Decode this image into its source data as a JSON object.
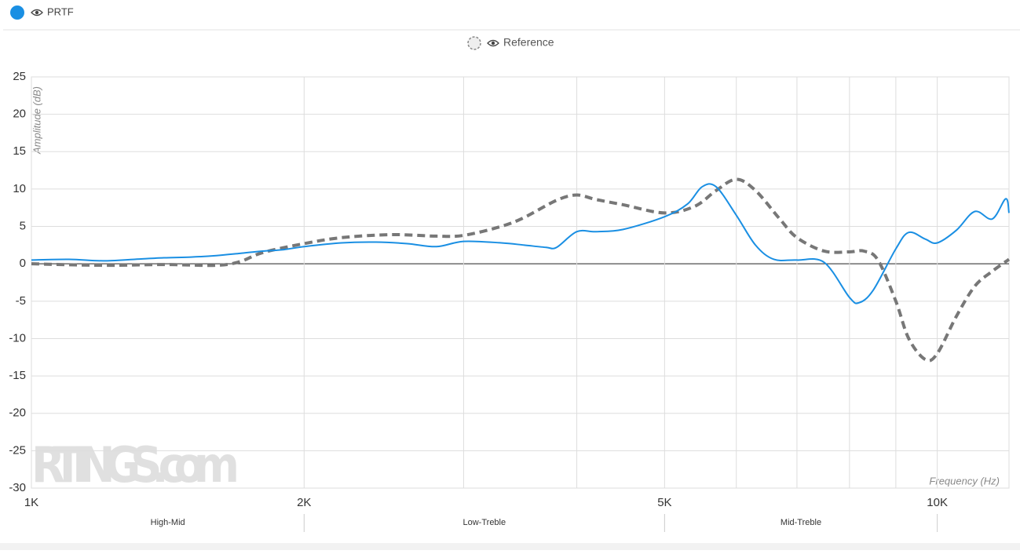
{
  "chart_data": {
    "type": "line",
    "legend": [
      "PRTF",
      "Reference"
    ],
    "y_title": "Amplitude (dB)",
    "x_title": "Frequency (Hz)",
    "watermark": "RTINGS.com",
    "log_x": true,
    "grid": true,
    "xlim": [
      1000,
      12000
    ],
    "ylim": [
      -30,
      25
    ],
    "yticks": [
      -30,
      -25,
      -20,
      -15,
      -10,
      -5,
      0,
      5,
      10,
      15,
      20,
      25
    ],
    "xticks": [
      {
        "value": 1000,
        "label": "1K"
      },
      {
        "value": 2000,
        "label": "2K"
      },
      {
        "value": 5000,
        "label": "5K"
      },
      {
        "value": 10000,
        "label": "10K"
      }
    ],
    "xgrid": [
      3000,
      4000,
      6000,
      7000,
      8000,
      9000
    ],
    "bands": [
      {
        "label": "High-Mid",
        "from": 1000,
        "to": 2000
      },
      {
        "label": "Low-Treble",
        "from": 2000,
        "to": 5000
      },
      {
        "label": "Mid-Treble",
        "from": 5000,
        "to": 10000
      }
    ],
    "series": [
      {
        "name": "PRTF",
        "color": "#1a8fe3",
        "dashed": false,
        "x": [
          1000,
          1100,
          1200,
          1300,
          1400,
          1500,
          1600,
          1700,
          1800,
          1900,
          2000,
          2200,
          2400,
          2600,
          2800,
          3000,
          3300,
          3500,
          3700,
          3800,
          4000,
          4200,
          4500,
          5000,
          5300,
          5500,
          5700,
          6000,
          6300,
          6600,
          7000,
          7500,
          8000,
          8200,
          8500,
          9000,
          9300,
          9700,
          10000,
          10500,
          11000,
          11500,
          11900,
          12000
        ],
        "values": [
          0.5,
          0.6,
          0.4,
          0.6,
          0.8,
          0.9,
          1.1,
          1.4,
          1.7,
          1.9,
          2.3,
          2.8,
          2.9,
          2.7,
          2.3,
          3.0,
          2.8,
          2.5,
          2.2,
          2.2,
          4.3,
          4.3,
          4.6,
          6.3,
          8.0,
          10.3,
          10.3,
          6.5,
          2.5,
          0.6,
          0.5,
          0.2,
          -4.5,
          -5.2,
          -3.5,
          2.0,
          4.2,
          3.3,
          2.8,
          4.5,
          7.0,
          6.0,
          8.7,
          6.8
        ]
      },
      {
        "name": "Reference",
        "color": "#777777",
        "dashed": true,
        "x": [
          1000,
          1200,
          1400,
          1600,
          1700,
          1800,
          2000,
          2200,
          2500,
          2800,
          3000,
          3300,
          3500,
          3800,
          4000,
          4200,
          4500,
          5000,
          5400,
          5700,
          6000,
          6300,
          6700,
          7000,
          7500,
          8000,
          8300,
          8600,
          9000,
          9300,
          9700,
          10000,
          10500,
          11000,
          11500,
          12000
        ],
        "values": [
          0,
          -0.2,
          -0.1,
          -0.2,
          0.3,
          1.5,
          2.7,
          3.5,
          3.9,
          3.7,
          3.8,
          5.0,
          6.2,
          8.5,
          9.2,
          8.6,
          7.9,
          6.8,
          7.7,
          9.8,
          11.3,
          9.8,
          6.0,
          3.5,
          1.7,
          1.6,
          1.7,
          0.5,
          -5,
          -10,
          -12.8,
          -12,
          -7,
          -3,
          -1,
          0.6
        ]
      }
    ]
  }
}
